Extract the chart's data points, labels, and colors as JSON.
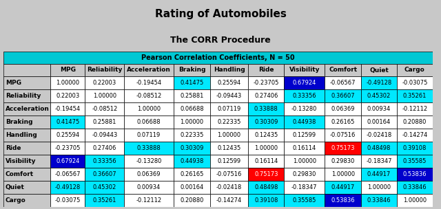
{
  "title": "Rating of Automobiles",
  "subtitle": "The CORR Procedure",
  "table_title": "Pearson Correlation Coefficients, N = 50",
  "variables": [
    "MPG",
    "Reliability",
    "Acceleration",
    "Braking",
    "Handling",
    "Ride",
    "Visibility",
    "Comfort",
    "Quiet",
    "Cargo"
  ],
  "matrix": [
    [
      1.0,
      0.22003,
      -0.19454,
      0.41475,
      0.25594,
      -0.23705,
      0.67924,
      -0.06567,
      -0.49128,
      -0.03075
    ],
    [
      0.22003,
      1.0,
      -0.08512,
      0.25881,
      -0.09443,
      0.27406,
      0.33356,
      0.36607,
      0.45302,
      0.35261
    ],
    [
      -0.19454,
      -0.08512,
      1.0,
      0.06688,
      0.07119,
      0.33888,
      -0.1328,
      0.06369,
      0.00934,
      -0.12112
    ],
    [
      0.41475,
      0.25881,
      0.06688,
      1.0,
      0.22335,
      0.30309,
      0.44938,
      0.26165,
      0.00164,
      0.2088
    ],
    [
      0.25594,
      -0.09443,
      0.07119,
      0.22335,
      1.0,
      0.12435,
      0.12599,
      -0.07516,
      -0.02418,
      -0.14274
    ],
    [
      -0.23705,
      0.27406,
      0.33888,
      0.30309,
      0.12435,
      1.0,
      0.16114,
      0.75173,
      0.48498,
      0.39108
    ],
    [
      0.67924,
      0.33356,
      -0.1328,
      0.44938,
      0.12599,
      0.16114,
      1.0,
      0.2983,
      -0.18347,
      0.35585
    ],
    [
      -0.06567,
      0.36607,
      0.06369,
      0.26165,
      -0.07516,
      0.75173,
      0.2983,
      1.0,
      0.44917,
      0.53836
    ],
    [
      -0.49128,
      0.45302,
      0.00934,
      0.00164,
      -0.02418,
      0.48498,
      -0.18347,
      0.44917,
      1.0,
      0.33846
    ],
    [
      -0.03075,
      0.35261,
      -0.12112,
      0.2088,
      -0.14274,
      0.39108,
      0.35585,
      0.53836,
      0.33846,
      1.0
    ]
  ],
  "highlighted_cells": [
    [
      0,
      6,
      "blue_dark"
    ],
    [
      5,
      7,
      "red"
    ],
    [
      6,
      0,
      "blue_dark"
    ],
    [
      7,
      5,
      "red"
    ],
    [
      7,
      9,
      "blue_dark"
    ],
    [
      9,
      7,
      "blue_dark"
    ]
  ],
  "cyan_threshold": 0.3,
  "bg_color": "#c8c8c8",
  "header_bg": "#00c8d4",
  "cyan_color": "#00e8ff",
  "blue_dark_color": "#0000cc",
  "red_color": "#ff0000",
  "white_color": "#ffffff",
  "title_fontsize": 11,
  "subtitle_fontsize": 9,
  "table_header_fontsize": 7,
  "col_header_fontsize": 6.5,
  "cell_fontsize": 6.0,
  "row_label_fontsize": 6.5
}
